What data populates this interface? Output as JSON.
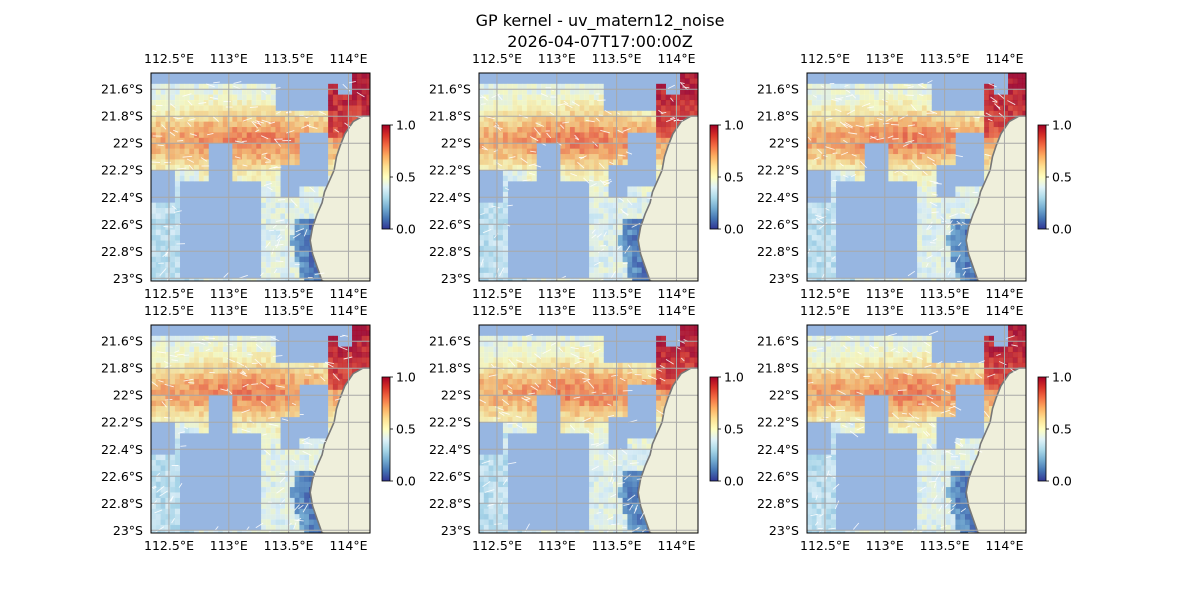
{
  "figure": {
    "title_line1": "GP kernel - uv_matern12_noise",
    "title_line2": "2026-04-07T17:00:00Z"
  },
  "colors": {
    "ocean": "#97b6e1",
    "land": "#efefdb",
    "coast": "#777777",
    "grid": "#a8a8a8",
    "colormap": [
      "#313695",
      "#4575b4",
      "#74add1",
      "#abd9e9",
      "#e0f3f8",
      "#ffffbf",
      "#fee090",
      "#fdae61",
      "#f46d43",
      "#d73027",
      "#a50026"
    ]
  },
  "chart_data": {
    "type": "heatmap",
    "panel_count": 6,
    "layout": "2 rows x 3 columns",
    "lon_ticks": [
      112.5,
      113.0,
      113.5,
      114.0
    ],
    "lon_tick_labels": [
      "112.5°E",
      "113°E",
      "113.5°E",
      "114°E"
    ],
    "lat_ticks": [
      -21.6,
      -21.8,
      -22.0,
      -22.2,
      -22.4,
      -22.6,
      -22.8,
      -23.0
    ],
    "lat_tick_labels": [
      "21.6°S",
      "21.8°S",
      "22°S",
      "22.2°S",
      "22.4°S",
      "22.6°S",
      "22.8°S",
      "23°S"
    ],
    "colorbar": {
      "vmin": 0.0,
      "vmax": 1.0,
      "tick_values": [
        0.0,
        0.5,
        1.0
      ],
      "tick_labels": [
        "0.0",
        "0.5",
        "1.0"
      ],
      "colormap": "RdYlBu_r"
    },
    "field_description_levels": {
      "high_cells_northeast": 0.95,
      "central_band": 0.7,
      "west_and_south": 0.4,
      "coastal_southeast": 0.1
    },
    "overlay": "velocity vectors (white arrows)"
  }
}
